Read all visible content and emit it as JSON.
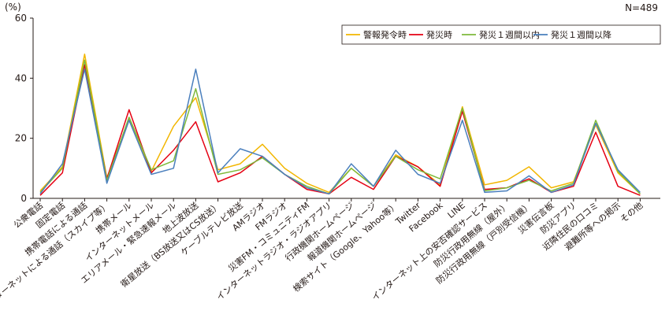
{
  "unit_label": "(%)",
  "sample_label": "N=489",
  "colors": {
    "axis": "#231815",
    "grid": "#b5b5b6",
    "series": [
      "#f2b600",
      "#e50012",
      "#7eb93b",
      "#4a7fbd"
    ]
  },
  "chart_data": {
    "type": "line",
    "ylim": [
      0,
      60
    ],
    "yticks": [
      0,
      20,
      40,
      60
    ],
    "legend_position": "top-right",
    "grid": false,
    "categories": [
      "公衆電話",
      "固定電話",
      "携帯電話による通話",
      "インターネットによる通話（スカイプ等）",
      "携帯メール",
      "インターネットメール",
      "エリアメール・緊急速報メール",
      "地上波放送",
      "衛星放送（BS放送又はCS放送）",
      "ケーブルテレビ放送",
      "AMラジオ",
      "FMラジオ",
      "災害FM・コミュニティFM",
      "インターネットラジオ・ラジオアプリ",
      "行政機関ホームページ",
      "報道機関ホームページ",
      "検索サイト（Google、Yahoo等）",
      "Twitter",
      "Facebook",
      "LINE",
      "インターネット上の安否確認サービス",
      "防災行政用無線（屋外）",
      "防災行政用無線（戸別受信機）",
      "災害伝言板",
      "防災アプリ",
      "近隣住民の口コミ",
      "避難所等への掲示",
      "その他"
    ],
    "series": [
      {
        "name": "警報発令時",
        "values": [
          2.5,
          10.5,
          48.0,
          6.8,
          26.5,
          9.0,
          24.0,
          33.5,
          9.5,
          11.5,
          18.0,
          10.0,
          5.0,
          2.0,
          10.0,
          4.0,
          14.5,
          10.5,
          4.5,
          30.5,
          4.5,
          6.0,
          10.5,
          3.5,
          5.5,
          24.5,
          8.5,
          1.5
        ]
      },
      {
        "name": "発災時",
        "values": [
          1.0,
          8.5,
          44.5,
          6.5,
          29.5,
          8.5,
          16.0,
          25.5,
          5.5,
          8.5,
          14.0,
          8.0,
          3.0,
          1.5,
          7.0,
          3.0,
          14.0,
          10.5,
          4.0,
          29.0,
          3.0,
          3.5,
          6.5,
          2.0,
          4.0,
          22.0,
          4.0,
          1.0
        ]
      },
      {
        "name": "発災１週間以内",
        "values": [
          2.0,
          10.0,
          46.0,
          6.0,
          27.0,
          9.5,
          12.5,
          36.5,
          8.0,
          9.5,
          13.5,
          8.0,
          4.0,
          1.5,
          10.0,
          4.0,
          14.0,
          9.5,
          6.5,
          30.0,
          2.5,
          3.5,
          6.0,
          2.5,
          5.0,
          26.0,
          9.0,
          1.5
        ]
      },
      {
        "name": "発災１週間以降",
        "values": [
          1.5,
          11.5,
          43.0,
          5.0,
          26.0,
          8.0,
          10.0,
          43.0,
          8.5,
          16.5,
          14.0,
          8.0,
          3.5,
          1.5,
          11.5,
          4.0,
          16.0,
          8.0,
          5.0,
          26.0,
          2.0,
          2.5,
          7.5,
          2.0,
          4.5,
          25.0,
          9.5,
          2.0
        ]
      }
    ]
  }
}
